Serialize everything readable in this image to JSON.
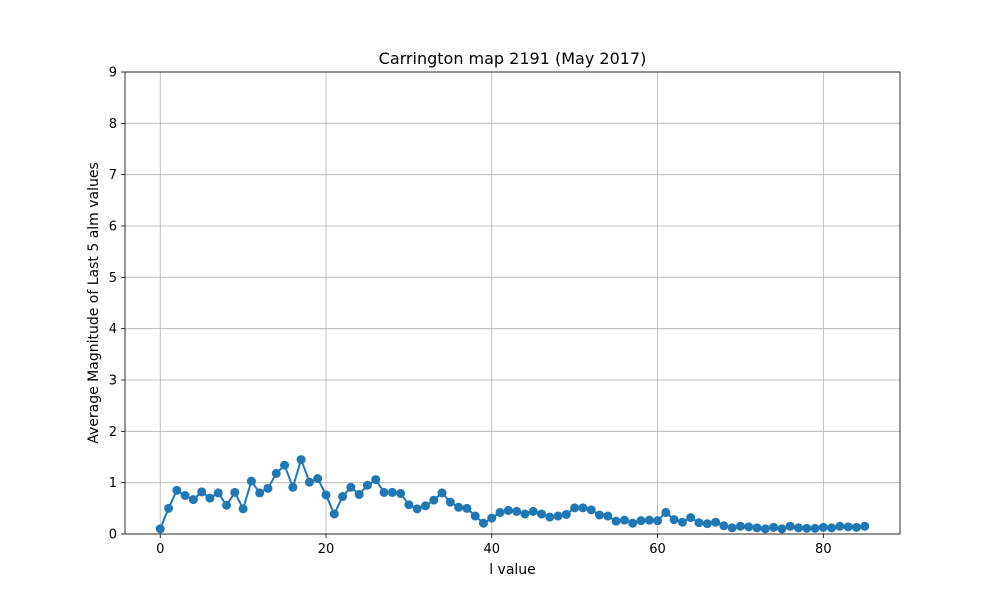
{
  "chart_data": {
    "type": "line",
    "title": "Carrington map 2191 (May 2017)",
    "xlabel": "l value",
    "ylabel": "Average Magnitude of Last 5 alm values",
    "xlim": [
      -4.25,
      89.25
    ],
    "ylim": [
      0,
      9
    ],
    "xticks": [
      0,
      20,
      40,
      60,
      80
    ],
    "yticks": [
      0,
      1,
      2,
      3,
      4,
      5,
      6,
      7,
      8,
      9
    ],
    "grid": true,
    "markers": true,
    "series": [
      {
        "color": "#1f77b4",
        "x": [
          0,
          1,
          2,
          3,
          4,
          5,
          6,
          7,
          8,
          9,
          10,
          11,
          12,
          13,
          14,
          15,
          16,
          17,
          18,
          19,
          20,
          21,
          22,
          23,
          24,
          25,
          26,
          27,
          28,
          29,
          30,
          31,
          32,
          33,
          34,
          35,
          36,
          37,
          38,
          39,
          40,
          41,
          42,
          43,
          44,
          45,
          46,
          47,
          48,
          49,
          50,
          51,
          52,
          53,
          54,
          55,
          56,
          57,
          58,
          59,
          60,
          61,
          62,
          63,
          64,
          65,
          66,
          67,
          68,
          69,
          70,
          71,
          72,
          73,
          74,
          75,
          76,
          77,
          78,
          79,
          80,
          81,
          82,
          83,
          84,
          85
        ],
        "y": [
          0.1,
          0.5,
          0.85,
          0.75,
          0.67,
          0.82,
          0.7,
          0.8,
          0.56,
          0.81,
          0.49,
          1.03,
          0.8,
          0.89,
          1.18,
          1.34,
          0.91,
          1.45,
          1.01,
          1.08,
          0.76,
          0.39,
          0.73,
          0.91,
          0.77,
          0.95,
          1.06,
          0.81,
          0.81,
          0.79,
          0.57,
          0.49,
          0.55,
          0.66,
          0.8,
          0.62,
          0.52,
          0.5,
          0.35,
          0.21,
          0.31,
          0.42,
          0.46,
          0.44,
          0.39,
          0.44,
          0.39,
          0.33,
          0.35,
          0.38,
          0.51,
          0.51,
          0.47,
          0.37,
          0.35,
          0.25,
          0.27,
          0.21,
          0.26,
          0.27,
          0.26,
          0.42,
          0.28,
          0.23,
          0.32,
          0.22,
          0.2,
          0.23,
          0.16,
          0.12,
          0.15,
          0.14,
          0.12,
          0.1,
          0.13,
          0.1,
          0.15,
          0.12,
          0.11,
          0.11,
          0.13,
          0.12,
          0.15,
          0.14,
          0.13,
          0.15
        ]
      }
    ]
  }
}
